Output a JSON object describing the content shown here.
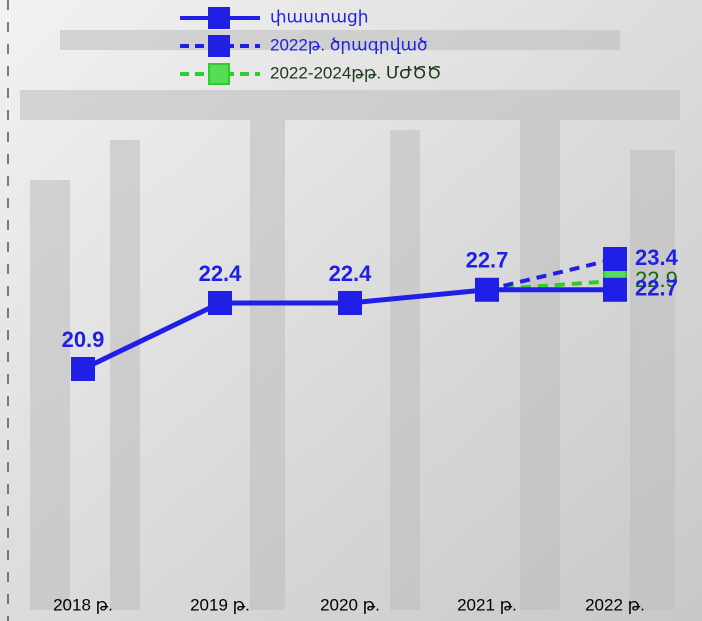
{
  "chart_data": {
    "type": "line",
    "categories": [
      "2018 թ.",
      "2019 թ.",
      "2020 թ.",
      "2021 թ.",
      "2022 թ."
    ],
    "series": [
      {
        "name": "փաստացի",
        "color": "#1f1fe6",
        "label_color": "#1f1fe6",
        "dash": false,
        "values": [
          20.9,
          22.4,
          22.4,
          22.7,
          22.7
        ]
      },
      {
        "name": "2022թ. ծրագրված",
        "color": "#1f1fe6",
        "label_color": "#1f1fe6",
        "dash": true,
        "values": [
          null,
          null,
          null,
          22.7,
          23.4
        ]
      },
      {
        "name": "2022-2024թթ. ՄԺԾԾ",
        "color": "#2ecc2e",
        "label_color": "#146414",
        "dash": true,
        "values": [
          null,
          null,
          null,
          22.7,
          22.9
        ]
      }
    ],
    "legend": "top-center"
  }
}
